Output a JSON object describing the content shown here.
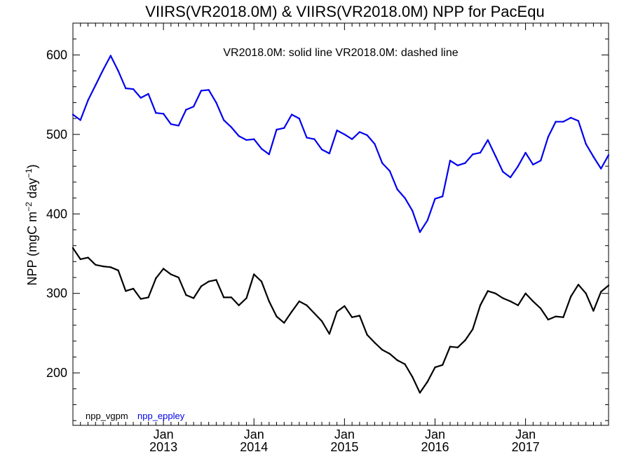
{
  "chart_data": {
    "type": "line",
    "title": "VIIRS(VR2018.0M) & VIIRS(VR2018.0M)  NPP for PacEqu",
    "annotation": "VR2018.0M: solid line   VR2018.0M: dashed line",
    "ylabel": {
      "base": "NPP (mgC m",
      "sup1": "−2",
      "mid": " day",
      "sup2": "−1",
      "end": ")"
    },
    "ylim": [
      134,
      640
    ],
    "yticks": [
      200,
      300,
      400,
      500,
      600
    ],
    "ytick_labels": [
      "200",
      "300",
      "400",
      "500",
      "600"
    ],
    "xlim": [
      2012.0,
      2017.917
    ],
    "xticks": [
      {
        "x": 2013.0,
        "month": "Jan",
        "year": "2013"
      },
      {
        "x": 2014.0,
        "month": "Jan",
        "year": "2014"
      },
      {
        "x": 2015.0,
        "month": "Jan",
        "year": "2015"
      },
      {
        "x": 2016.0,
        "month": "Jan",
        "year": "2016"
      },
      {
        "x": 2017.0,
        "month": "Jan",
        "year": "2017"
      }
    ],
    "x": [
      2012.0,
      2012.083,
      2012.167,
      2012.25,
      2012.333,
      2012.417,
      2012.5,
      2012.583,
      2012.667,
      2012.75,
      2012.833,
      2012.917,
      2013.0,
      2013.083,
      2013.167,
      2013.25,
      2013.333,
      2013.417,
      2013.5,
      2013.583,
      2013.667,
      2013.75,
      2013.833,
      2013.917,
      2014.0,
      2014.083,
      2014.167,
      2014.25,
      2014.333,
      2014.417,
      2014.5,
      2014.583,
      2014.667,
      2014.75,
      2014.833,
      2014.917,
      2015.0,
      2015.083,
      2015.167,
      2015.25,
      2015.333,
      2015.417,
      2015.5,
      2015.583,
      2015.667,
      2015.75,
      2015.833,
      2015.917,
      2016.0,
      2016.083,
      2016.167,
      2016.25,
      2016.333,
      2016.417,
      2016.5,
      2016.583,
      2016.667,
      2016.75,
      2016.833,
      2016.917,
      2017.0,
      2017.083,
      2017.167,
      2017.25,
      2017.333,
      2017.417,
      2017.5,
      2017.583,
      2017.667,
      2017.75,
      2017.833,
      2017.917
    ],
    "series": [
      {
        "name": "npp_vgpm",
        "color": "#000000",
        "values": [
          357,
          343,
          345,
          336,
          334,
          333,
          329,
          303,
          306,
          293,
          295,
          319,
          331,
          324,
          320,
          298,
          294,
          309,
          315,
          317,
          295,
          295,
          285,
          294,
          324,
          315,
          290,
          271,
          263,
          277,
          290,
          285,
          275,
          265,
          249,
          277,
          284,
          270,
          272,
          248,
          238,
          229,
          224,
          216,
          211,
          195,
          175,
          189,
          207,
          210,
          233,
          232,
          241,
          255,
          285,
          303,
          300,
          294,
          290,
          285,
          300,
          290,
          281,
          267,
          271,
          270,
          296,
          311,
          300,
          278,
          302,
          310
        ]
      },
      {
        "name": "npp_eppley",
        "color": "#0000ee",
        "values": [
          525,
          518,
          543,
          562,
          581,
          599,
          580,
          558,
          557,
          546,
          551,
          527,
          526,
          513,
          511,
          531,
          535,
          555,
          556,
          540,
          518,
          509,
          498,
          493,
          494,
          482,
          475,
          506,
          508,
          525,
          520,
          496,
          494,
          481,
          476,
          505,
          500,
          494,
          503,
          499,
          488,
          464,
          454,
          431,
          420,
          404,
          377,
          392,
          419,
          422,
          467,
          461,
          464,
          475,
          477,
          493,
          473,
          453,
          446,
          460,
          477,
          462,
          467,
          497,
          516,
          516,
          521,
          517,
          488,
          472,
          457,
          474
        ]
      }
    ]
  }
}
